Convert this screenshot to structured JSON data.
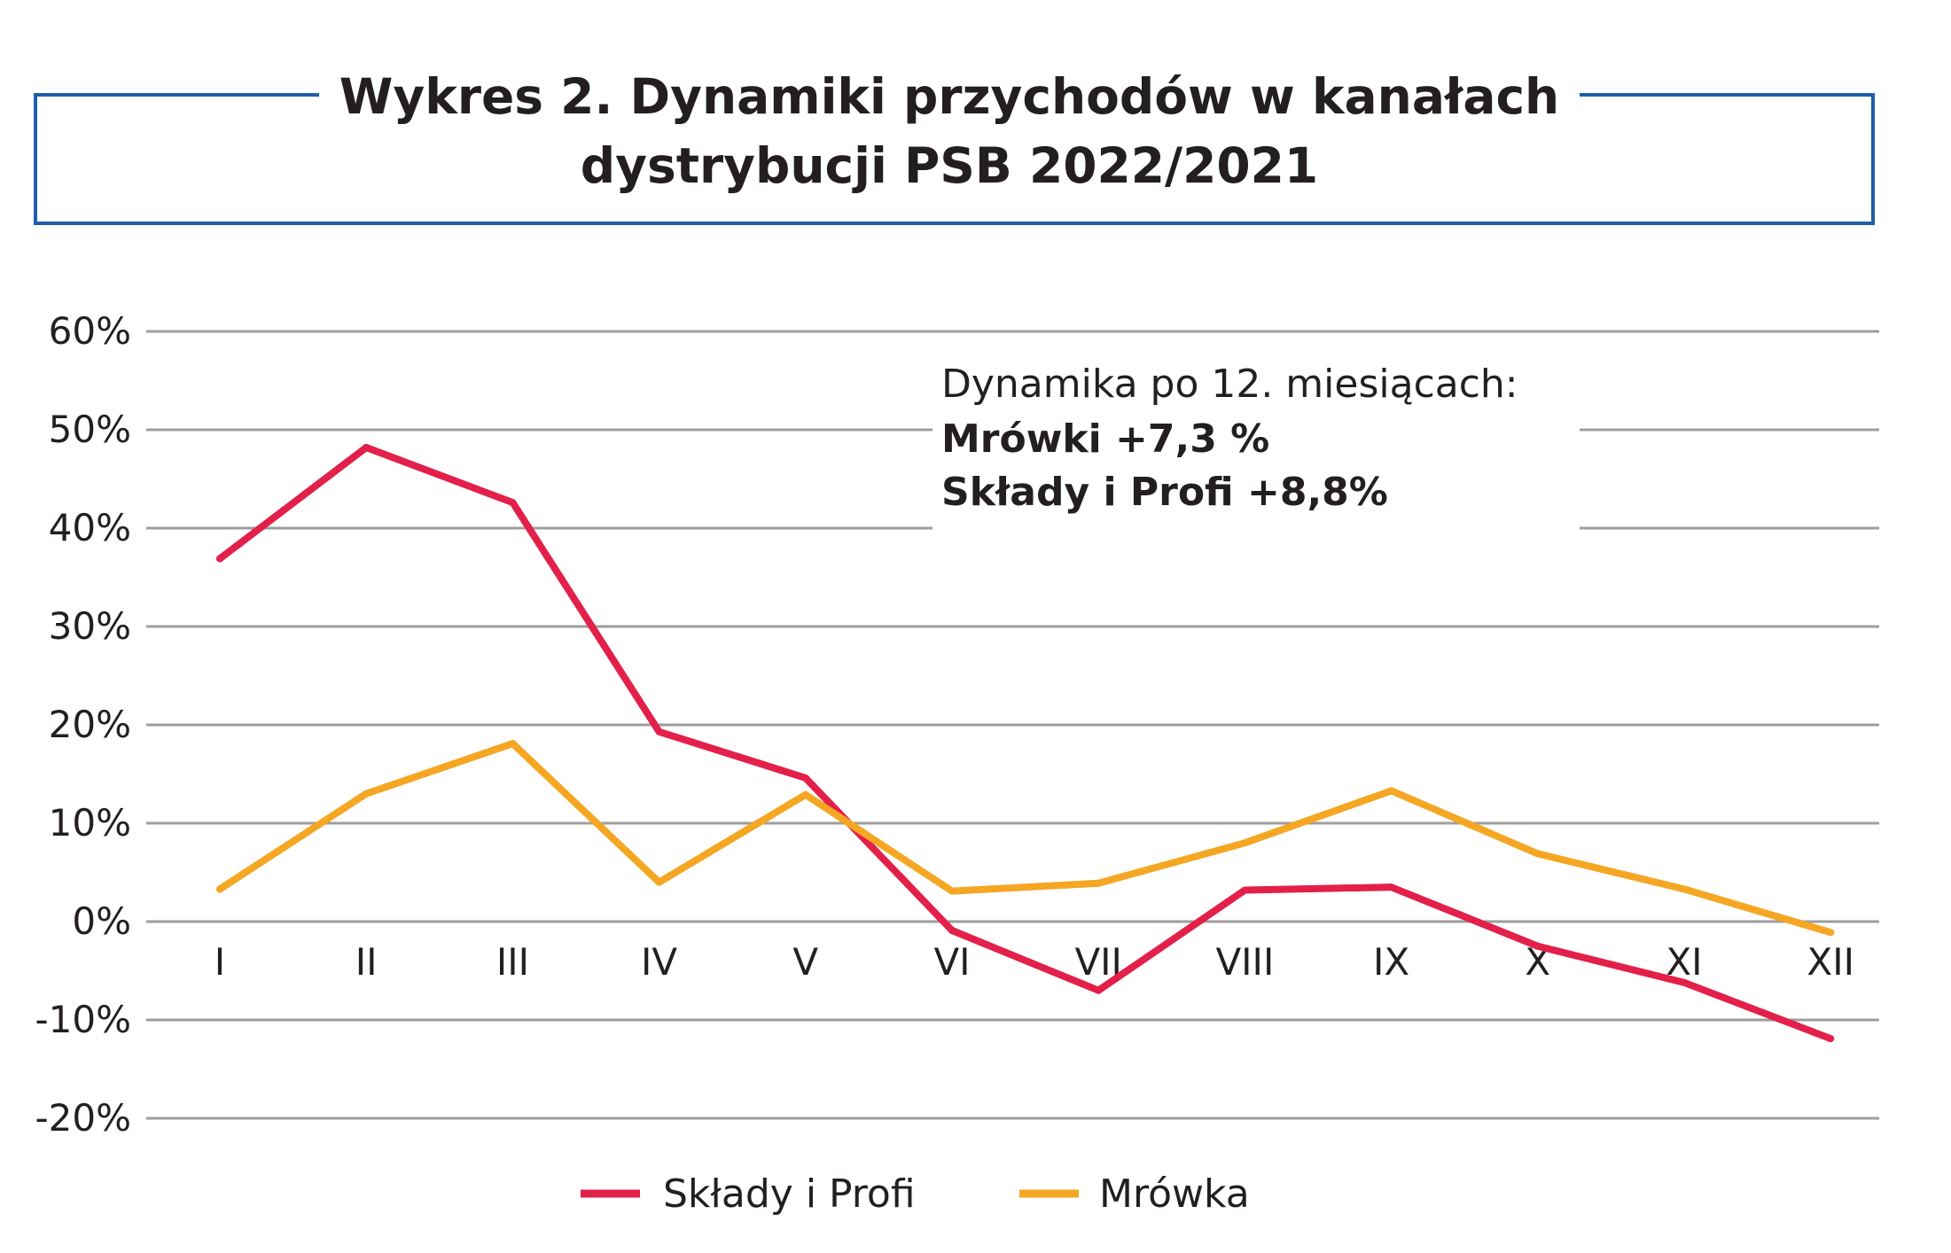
{
  "chart_data": {
    "type": "line",
    "title_lines": [
      "Wykres 2. Dynamiki przychodów w kanałach",
      "dystrybucji PSB 2022/2021"
    ],
    "categories": [
      "I",
      "II",
      "III",
      "IV",
      "V",
      "VI",
      "VII",
      "VIII",
      "IX",
      "X",
      "XI",
      "XII"
    ],
    "ylim": [
      -20,
      60
    ],
    "yticks": [
      60,
      50,
      40,
      30,
      20,
      10,
      0,
      -10,
      -20
    ],
    "ytick_labels": [
      "60%",
      "50%",
      "40%",
      "30%",
      "20%",
      "10%",
      "0%",
      "-10%",
      "-20%"
    ],
    "grid": true,
    "legend_position": "bottom",
    "series": [
      {
        "name": "Składy i Profi",
        "color": "#e3204a",
        "values": [
          36.9,
          48.2,
          42.6,
          19.3,
          14.6,
          -0.9,
          -7.0,
          3.2,
          3.5,
          -2.5,
          -6.2,
          -11.9
        ]
      },
      {
        "name": "Mrówka",
        "color": "#f5a623",
        "values": [
          3.3,
          13.0,
          18.1,
          4.0,
          12.9,
          3.1,
          3.9,
          8.0,
          13.3,
          6.9,
          3.3,
          -1.1
        ]
      }
    ],
    "annotation": {
      "line1": "Dynamika po 12. miesiącach:",
      "line2": "Mrówki  +7,3 %",
      "line3": "Składy i Profi  +8,8%"
    },
    "frame_color": "#1f5ea8",
    "grid_color": "#9d9d9d"
  }
}
